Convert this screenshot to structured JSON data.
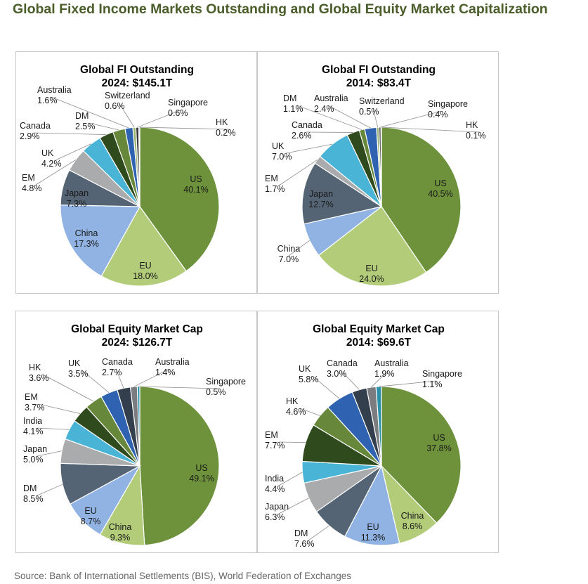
{
  "page_title": "Global Fixed Income Markets Outstanding and Global Equity Market Capitalization",
  "source_note": "Source: Bank of International Settlements (BIS), World Federation of Exchanges",
  "colors": {
    "US": "#6d923b",
    "EU": "#b2cc79",
    "China": "#91b3e3",
    "Japan": "#556474",
    "EM": "#a9abad",
    "UK": "#4ab4d6",
    "Canada": "#2f4a1d",
    "DM": "#67883b",
    "Australia": "#2f63b2",
    "Switzerland": "#9ab36f",
    "Singapore": "#3a3a3a",
    "HK": "#7f9fd3",
    "India": "#4ab4d6"
  },
  "chart_data": [
    {
      "type": "pie",
      "title_line1": "Global FI Outstanding",
      "title_line2": "2024: $145.1T",
      "slices": [
        {
          "label": "US",
          "value": 40.1,
          "value_label": "40.1%",
          "color": "#6d923b"
        },
        {
          "label": "EU",
          "value": 18.0,
          "value_label": "18.0%",
          "color": "#b2cc79"
        },
        {
          "label": "China",
          "value": 17.3,
          "value_label": "17.3%",
          "color": "#91b3e3"
        },
        {
          "label": "Japan",
          "value": 7.3,
          "value_label": "7.3%",
          "color": "#556474"
        },
        {
          "label": "EM",
          "value": 4.8,
          "value_label": "4.8%",
          "color": "#a9abad"
        },
        {
          "label": "UK",
          "value": 4.2,
          "value_label": "4.2%",
          "color": "#4ab4d6"
        },
        {
          "label": "Canada",
          "value": 2.9,
          "value_label": "2.9%",
          "color": "#2f4a1d"
        },
        {
          "label": "DM",
          "value": 2.5,
          "value_label": "2.5%",
          "color": "#67883b"
        },
        {
          "label": "Australia",
          "value": 1.6,
          "value_label": "1.6%",
          "color": "#2f63b2"
        },
        {
          "label": "Switzerland",
          "value": 0.6,
          "value_label": "0.6%",
          "color": "#9ab36f"
        },
        {
          "label": "Singapore",
          "value": 0.6,
          "value_label": "0.6%",
          "color": "#3a3a3a"
        },
        {
          "label": "HK",
          "value": 0.2,
          "value_label": "0.2%",
          "color": "#7f9fd3"
        }
      ]
    },
    {
      "type": "pie",
      "title_line1": "Global FI Outstanding",
      "title_line2": "2014: $83.4T",
      "slices": [
        {
          "label": "US",
          "value": 40.5,
          "value_label": "40.5%",
          "color": "#6d923b"
        },
        {
          "label": "EU",
          "value": 24.0,
          "value_label": "24.0%",
          "color": "#b2cc79"
        },
        {
          "label": "China",
          "value": 7.0,
          "value_label": "7.0%",
          "color": "#91b3e3"
        },
        {
          "label": "Japan",
          "value": 12.7,
          "value_label": "12.7%",
          "color": "#556474"
        },
        {
          "label": "EM",
          "value": 1.7,
          "value_label": "1.7%",
          "color": "#a9abad"
        },
        {
          "label": "UK",
          "value": 7.0,
          "value_label": "7.0%",
          "color": "#4ab4d6"
        },
        {
          "label": "Canada",
          "value": 2.6,
          "value_label": "2.6%",
          "color": "#2f4a1d"
        },
        {
          "label": "DM",
          "value": 1.1,
          "value_label": "1.1%",
          "color": "#67883b"
        },
        {
          "label": "Australia",
          "value": 2.4,
          "value_label": "2.4%",
          "color": "#2f63b2"
        },
        {
          "label": "Switzerland",
          "value": 0.5,
          "value_label": "0.5%",
          "color": "#9ab36f"
        },
        {
          "label": "Singapore",
          "value": 0.4,
          "value_label": "0.4%",
          "color": "#3a3a3a"
        },
        {
          "label": "HK",
          "value": 0.1,
          "value_label": "0.1%",
          "color": "#7f9fd3"
        }
      ]
    },
    {
      "type": "pie",
      "title_line1": "Global Equity Market Cap",
      "title_line2": "2024: $126.7T",
      "slices": [
        {
          "label": "US",
          "value": 49.1,
          "value_label": "49.1%",
          "color": "#6d923b"
        },
        {
          "label": "China",
          "value": 9.3,
          "value_label": "9.3%",
          "color": "#b2cc79"
        },
        {
          "label": "EU",
          "value": 8.7,
          "value_label": "8.7%",
          "color": "#91b3e3"
        },
        {
          "label": "DM",
          "value": 8.5,
          "value_label": "8.5%",
          "color": "#556474"
        },
        {
          "label": "Japan",
          "value": 5.0,
          "value_label": "5.0%",
          "color": "#a9abad"
        },
        {
          "label": "India",
          "value": 4.1,
          "value_label": "4.1%",
          "color": "#4ab4d6"
        },
        {
          "label": "EM",
          "value": 3.7,
          "value_label": "3.7%",
          "color": "#2f4a1d"
        },
        {
          "label": "HK",
          "value": 3.6,
          "value_label": "3.6%",
          "color": "#67883b"
        },
        {
          "label": "UK",
          "value": 3.5,
          "value_label": "3.5%",
          "color": "#2f63b2"
        },
        {
          "label": "Canada",
          "value": 2.7,
          "value_label": "2.7%",
          "color": "#333f4c"
        },
        {
          "label": "Australia",
          "value": 1.4,
          "value_label": "1.4%",
          "color": "#7a7c80"
        },
        {
          "label": "Singapore",
          "value": 0.5,
          "value_label": "0.5%",
          "color": "#2c8fa8"
        }
      ]
    },
    {
      "type": "pie",
      "title_line1": "Global Equity Market Cap",
      "title_line2": "2014: $69.6T",
      "slices": [
        {
          "label": "US",
          "value": 37.8,
          "value_label": "37.8%",
          "color": "#6d923b"
        },
        {
          "label": "China",
          "value": 8.6,
          "value_label": "8.6%",
          "color": "#b2cc79"
        },
        {
          "label": "EU",
          "value": 11.3,
          "value_label": "11.3%",
          "color": "#91b3e3"
        },
        {
          "label": "DM",
          "value": 7.6,
          "value_label": "7.6%",
          "color": "#556474"
        },
        {
          "label": "Japan",
          "value": 6.3,
          "value_label": "6.3%",
          "color": "#a9abad"
        },
        {
          "label": "India",
          "value": 4.4,
          "value_label": "4.4%",
          "color": "#4ab4d6"
        },
        {
          "label": "EM",
          "value": 7.7,
          "value_label": "7.7%",
          "color": "#2f4a1d"
        },
        {
          "label": "HK",
          "value": 4.6,
          "value_label": "4.6%",
          "color": "#67883b"
        },
        {
          "label": "UK",
          "value": 5.8,
          "value_label": "5.8%",
          "color": "#2f63b2"
        },
        {
          "label": "Canada",
          "value": 3.0,
          "value_label": "3.0%",
          "color": "#333f4c"
        },
        {
          "label": "Australia",
          "value": 1.9,
          "value_label": "1.9%",
          "color": "#7a7c80"
        },
        {
          "label": "Singapore",
          "value": 1.1,
          "value_label": "1.1%",
          "color": "#2c8fa8"
        }
      ]
    }
  ]
}
